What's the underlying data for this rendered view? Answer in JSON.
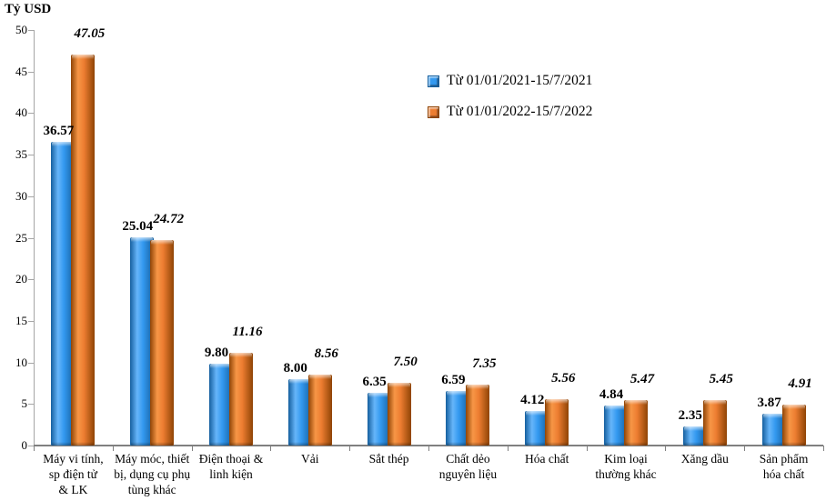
{
  "chart_data": {
    "type": "bar",
    "title": "Tỷ USD",
    "ylabel": "Tỷ USD",
    "xlabel": "",
    "ylim": [
      0,
      50
    ],
    "ytick_step": 5,
    "grid": false,
    "legend_position": "top-right-inside",
    "categories": [
      "Máy vi tính,\nsp điện tử\n& LK",
      "Máy móc, thiết\nbị, dụng cụ phụ\ntùng khác",
      "Điện thoại &\nlinh kiện",
      "Vải",
      "Sắt thép",
      "Chất dẻo\nnguyên liệu",
      "Hóa chất",
      "Kim loại\nthường khác",
      "Xăng dầu",
      "Sản phẩm\nhóa chất"
    ],
    "series": [
      {
        "name": "Từ 01/01/2021-15/7/2021",
        "color": "#3399F0",
        "color_light": "#66B5FA",
        "color_dark": "#155F9E",
        "values": [
          36.57,
          25.04,
          9.8,
          8.0,
          6.35,
          6.59,
          4.12,
          4.84,
          2.35,
          3.87
        ],
        "labels": [
          "36.57",
          "25.04",
          "9.80",
          "8.00",
          "6.35",
          "6.59",
          "4.12",
          "4.84",
          "2.35",
          "3.87"
        ]
      },
      {
        "name": "Từ 01/01/2022-15/7/2022",
        "color": "#ED7D31",
        "color_light": "#F79646",
        "color_dark": "#8F4405",
        "values": [
          47.05,
          24.72,
          11.16,
          8.56,
          7.5,
          7.35,
          5.56,
          5.47,
          5.45,
          4.91
        ],
        "labels": [
          "47.05",
          "24.72",
          "11.16",
          "8.56",
          "7.50",
          "7.35",
          "5.56",
          "5.47",
          "5.45",
          "4.91"
        ]
      }
    ]
  }
}
